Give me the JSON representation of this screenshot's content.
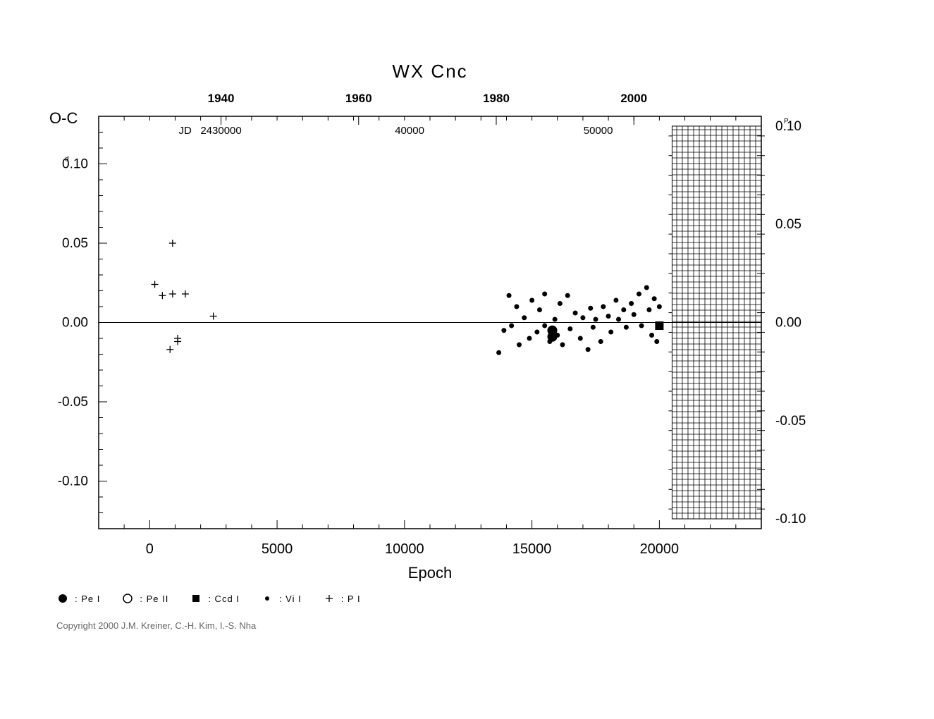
{
  "chart": {
    "type": "scatter",
    "title": "WX  Cnc",
    "title_fontsize": 26,
    "background_color": "#ffffff",
    "stroke_color": "#000000",
    "xlabel": "Epoch",
    "xlabel_fontsize": 22,
    "yaxis_left_label": "O-C",
    "yaxis_left_unit": "0.10",
    "yaxis_left_unit_sup": "d",
    "yaxis_right_unit": "0.10",
    "yaxis_right_unit_sup": "P",
    "x_bottom": {
      "min": -2000,
      "max": 24000,
      "ticks": [
        0,
        5000,
        10000,
        15000,
        20000
      ],
      "minor_step": 1000
    },
    "x_top_years": {
      "ticks": [
        1940,
        1960,
        1980,
        2000
      ],
      "positions_epoch": [
        2800,
        8200,
        13600,
        19000
      ]
    },
    "x_top_jd": {
      "label_prefix": "JD",
      "base": "2430000",
      "ticks": [
        30000,
        40000,
        50000
      ],
      "positions_epoch": [
        2800,
        10200,
        17600
      ]
    },
    "y_left": {
      "min": -0.13,
      "max": 0.13,
      "ticks": [
        -0.1,
        -0.05,
        0.0,
        0.05,
        0.1
      ],
      "tick_labels": [
        "-0.10",
        "-0.05",
        "0.00",
        "0.05",
        "0.10"
      ],
      "minor_step": 0.01
    },
    "y_right": {
      "min": -0.105,
      "max": 0.105,
      "ticks": [
        -0.1,
        -0.05,
        0.0,
        0.05,
        0.1
      ],
      "tick_labels": [
        "-0.10",
        "-0.05",
        "0.00",
        "0.05",
        "0.10"
      ],
      "minor_step": 0.01
    },
    "zero_line_y": 0.0,
    "hatched_region": {
      "x_start_epoch": 20500,
      "x_end_epoch": 24000,
      "y_right_min": -0.1,
      "y_right_max": 0.1
    },
    "series": {
      "pe1": {
        "marker": "filled-circle-large",
        "size": 7,
        "points": [
          [
            15800,
            -0.005
          ],
          [
            15800,
            -0.009
          ]
        ]
      },
      "ccd1": {
        "marker": "filled-square",
        "size": 6,
        "points": [
          [
            20000,
            -0.002
          ]
        ]
      },
      "vi1": {
        "marker": "filled-circle-small",
        "size": 3.5,
        "points": [
          [
            13700,
            -0.019
          ],
          [
            13900,
            -0.005
          ],
          [
            14100,
            0.017
          ],
          [
            14200,
            -0.002
          ],
          [
            14400,
            0.01
          ],
          [
            14500,
            -0.014
          ],
          [
            14700,
            0.003
          ],
          [
            14900,
            -0.01
          ],
          [
            15000,
            0.014
          ],
          [
            15200,
            -0.006
          ],
          [
            15300,
            0.008
          ],
          [
            15500,
            0.018
          ],
          [
            15500,
            -0.002
          ],
          [
            15700,
            -0.012
          ],
          [
            15900,
            0.002
          ],
          [
            16000,
            -0.008
          ],
          [
            16100,
            0.012
          ],
          [
            16200,
            -0.014
          ],
          [
            16400,
            0.017
          ],
          [
            16500,
            -0.004
          ],
          [
            16700,
            0.006
          ],
          [
            16900,
            -0.01
          ],
          [
            17000,
            0.003
          ],
          [
            17200,
            -0.017
          ],
          [
            17300,
            0.009
          ],
          [
            17400,
            -0.003
          ],
          [
            17500,
            0.002
          ],
          [
            17700,
            -0.012
          ],
          [
            17800,
            0.01
          ],
          [
            18000,
            0.004
          ],
          [
            18100,
            -0.006
          ],
          [
            18300,
            0.014
          ],
          [
            18400,
            0.002
          ],
          [
            18600,
            0.008
          ],
          [
            18700,
            -0.003
          ],
          [
            18900,
            0.012
          ],
          [
            19000,
            0.005
          ],
          [
            19200,
            0.018
          ],
          [
            19300,
            -0.002
          ],
          [
            19500,
            0.022
          ],
          [
            19600,
            0.008
          ],
          [
            19700,
            -0.008
          ],
          [
            19800,
            0.015
          ],
          [
            19900,
            -0.012
          ],
          [
            20000,
            0.01
          ]
        ]
      },
      "p1": {
        "marker": "plus",
        "size": 5,
        "points": [
          [
            200,
            0.024
          ],
          [
            500,
            0.017
          ],
          [
            900,
            0.05
          ],
          [
            900,
            0.018
          ],
          [
            800,
            -0.017
          ],
          [
            1100,
            -0.01
          ],
          [
            1100,
            -0.012
          ],
          [
            1400,
            0.018
          ],
          [
            2500,
            0.004
          ]
        ]
      }
    },
    "legend": [
      {
        "marker": "filled-circle-large",
        "label": ": Pe I"
      },
      {
        "marker": "open-circle",
        "label": ": Pe II"
      },
      {
        "marker": "filled-square",
        "label": ": Ccd I"
      },
      {
        "marker": "filled-circle-small",
        "label": ": Vi I"
      },
      {
        "marker": "plus",
        "label": ": P I"
      }
    ]
  },
  "copyright": "Copyright 2000 J.M. Kreiner, C.-H. Kim, I.-S. Nha"
}
